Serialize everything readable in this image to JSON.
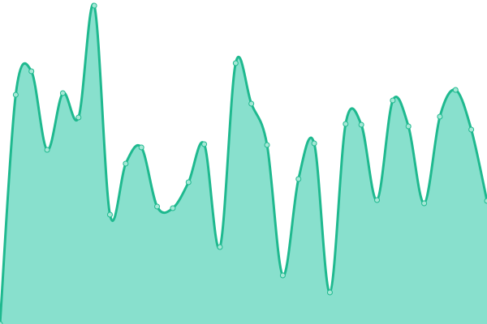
{
  "chart_data": {
    "type": "area",
    "values": [
      0,
      283,
      312,
      215,
      285,
      255,
      393,
      135,
      198,
      218,
      145,
      143,
      175,
      222,
      95,
      322,
      272,
      221,
      60,
      179,
      223,
      39,
      247,
      246,
      153,
      276,
      244,
      149,
      256,
      289,
      240,
      152
    ],
    "ylim": [
      0,
      400
    ],
    "line_color": "#1fb98f",
    "fill_color": "#88e0cd",
    "point_fill": "#a5e8d6"
  }
}
